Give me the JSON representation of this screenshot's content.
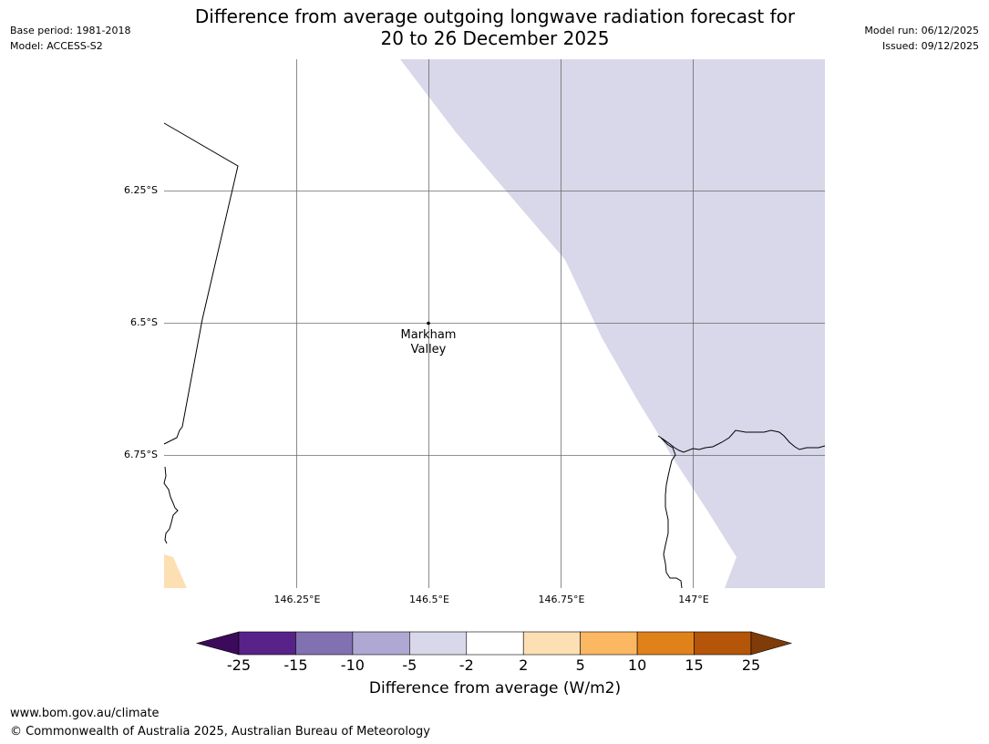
{
  "meta": {
    "base_period": "Base period: 1981-2018",
    "model": "Model: ACCESS-S2",
    "model_run": "Model run: 06/12/2025",
    "issued": "Issued: 09/12/2025"
  },
  "title": {
    "line1": "Difference from average outgoing longwave radiation forecast for",
    "line2": "20 to 26 December 2025"
  },
  "map": {
    "latitude_labels": [
      "6.25°S",
      "6.5°S",
      "6.75°S"
    ],
    "longitude_labels": [
      "146.25°E",
      "146.5°E",
      "146.75°E",
      "147°E"
    ],
    "place": {
      "name_line1": "Markham",
      "name_line2": "Valley",
      "lat": -6.5,
      "lon": 146.5
    },
    "colors": {
      "band_minus5_minus2": "#d8d8ea",
      "band_2_5": "#fddfb4",
      "coastline": "#000000",
      "gridline": "#555555"
    }
  },
  "colorbar": {
    "label": "Difference from average (W/m2)",
    "ticks": [
      "-25",
      "-15",
      "-10",
      "-5",
      "-2",
      "2",
      "5",
      "10",
      "15",
      "25"
    ],
    "colors": [
      "#3c0a5a",
      "#582388",
      "#8271b0",
      "#afa8d2",
      "#d8d8ea",
      "#ffffff",
      "#fddfb4",
      "#fbb761",
      "#e0821a",
      "#b45509",
      "#7f3b08"
    ]
  },
  "footer": {
    "url": "www.bom.gov.au/climate",
    "copyright": "© Commonwealth of Australia 2025, Australian Bureau of Meteorology"
  }
}
